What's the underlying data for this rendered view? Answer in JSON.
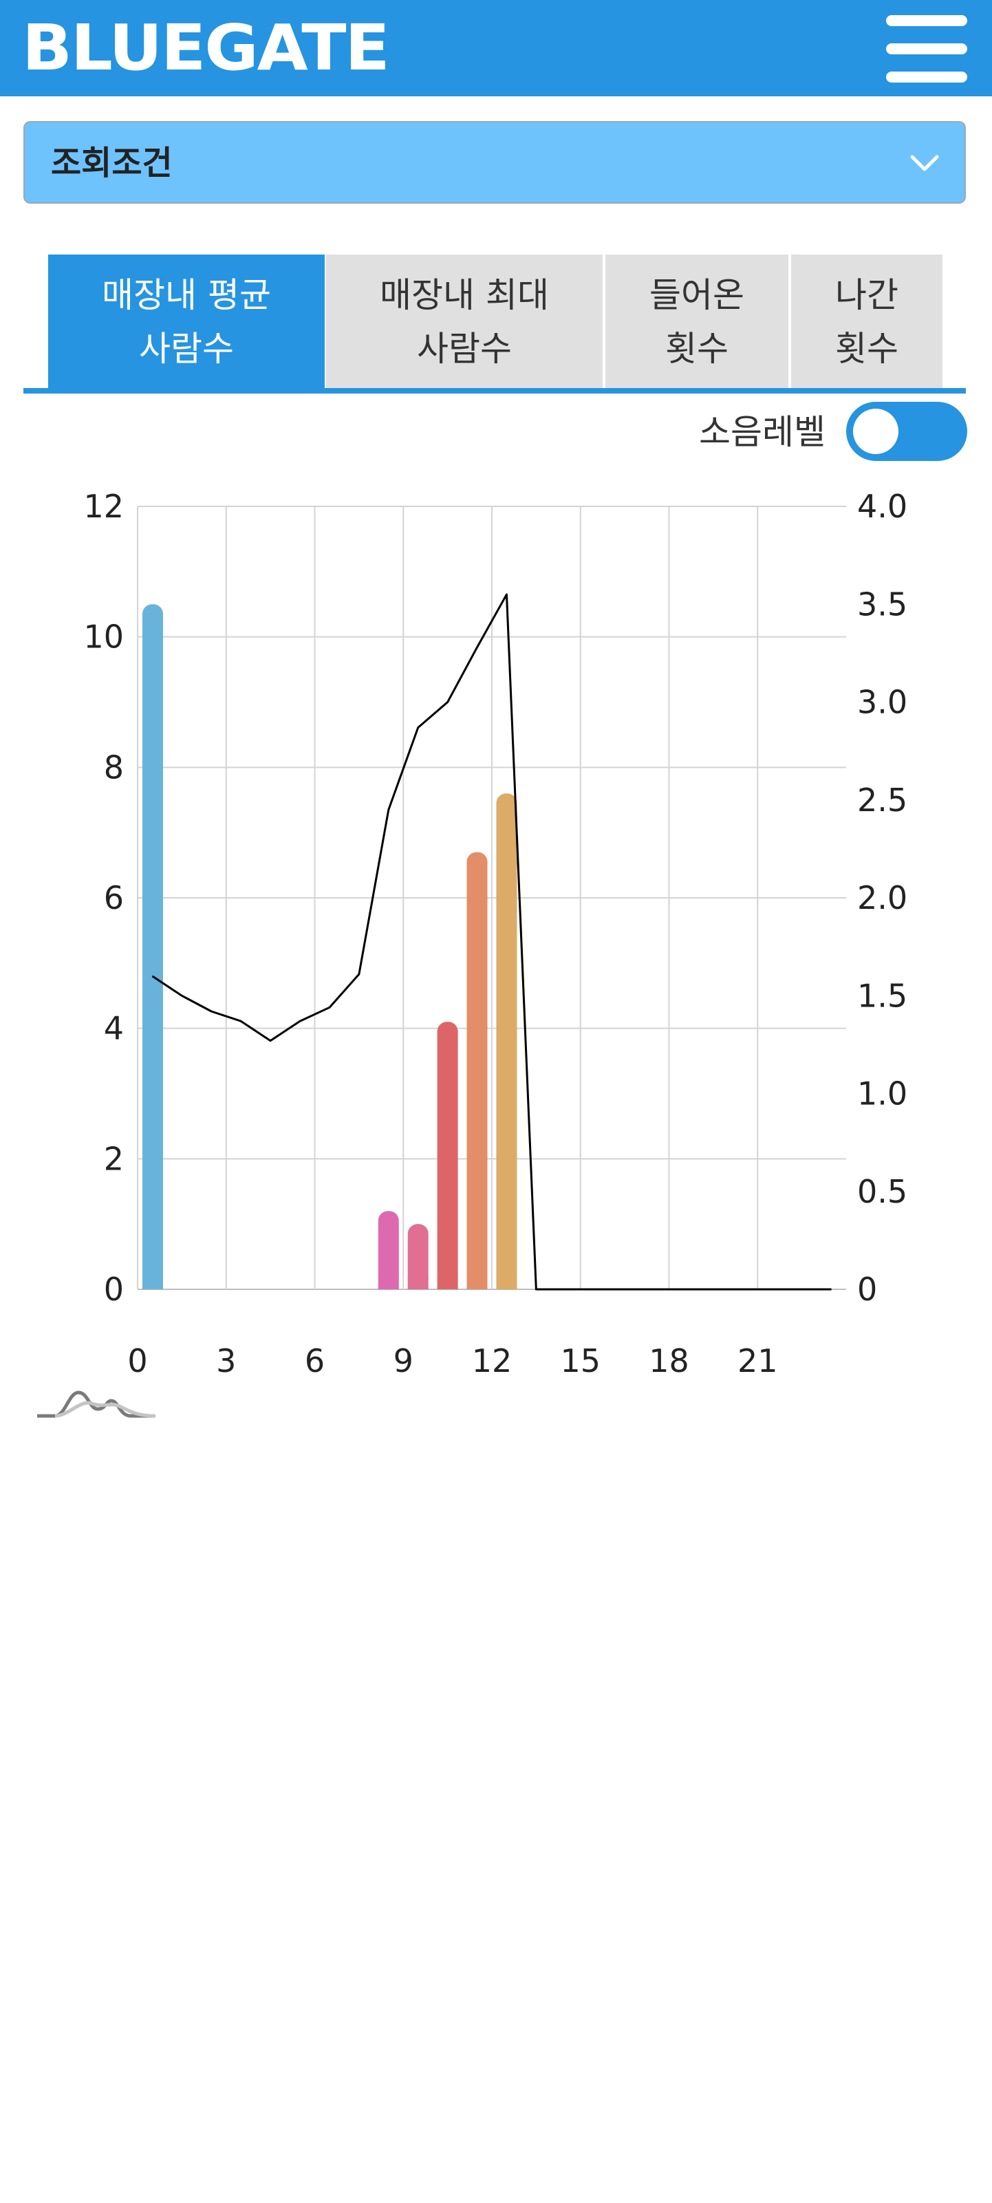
{
  "header": {
    "logo": "BLUEGATE",
    "menu_icon": "hamburger-menu-icon"
  },
  "filter": {
    "label": "조회조건",
    "icon": "chevron-down-icon"
  },
  "tabs": [
    {
      "line1": "매장내 평균",
      "line2": "사람수",
      "active": true
    },
    {
      "line1": "매장내 최대",
      "line2": "사람수",
      "active": false
    },
    {
      "line1": "들어온",
      "line2": "횟수",
      "active": false
    },
    {
      "line1": "나간",
      "line2": "횟수",
      "active": false
    }
  ],
  "noise": {
    "label": "소음레벨",
    "on": true
  },
  "chart_data": {
    "type": "bar",
    "grid": true,
    "x_ticks": [
      "0",
      "3",
      "6",
      "9",
      "12",
      "15",
      "18",
      "21"
    ],
    "y_left_ticks": [
      "0",
      "2",
      "4",
      "6",
      "8",
      "10",
      "12"
    ],
    "y_right_ticks": [
      "0",
      "0.5",
      "1.0",
      "1.5",
      "2.0",
      "2.5",
      "3.0",
      "3.5",
      "4.0"
    ],
    "ylim_left": [
      0,
      12
    ],
    "ylim_right": [
      0,
      4.0
    ],
    "bars": [
      {
        "x": 0,
        "value": 10.5,
        "color": "#68b3dc"
      },
      {
        "x": 8.5,
        "value": 1.2,
        "color": "#dd6aaf"
      },
      {
        "x": 9.5,
        "value": 1.0,
        "color": "#e06f93"
      },
      {
        "x": 10.5,
        "value": 4.1,
        "color": "#dd6568"
      },
      {
        "x": 11.5,
        "value": 6.7,
        "color": "#e38e68"
      },
      {
        "x": 12.5,
        "value": 7.6,
        "color": "#dcab66"
      }
    ],
    "line": {
      "axis": "right",
      "color": "#000000",
      "points": [
        [
          0.5,
          1.6
        ],
        [
          1.5,
          1.5
        ],
        [
          2.5,
          1.42
        ],
        [
          3.5,
          1.37
        ],
        [
          4.5,
          1.27
        ],
        [
          5.5,
          1.37
        ],
        [
          6.5,
          1.44
        ],
        [
          7.5,
          1.61
        ],
        [
          8.5,
          2.45
        ],
        [
          9.5,
          2.87
        ],
        [
          10.5,
          3.0
        ],
        [
          11.5,
          3.28
        ],
        [
          12.5,
          3.55
        ],
        [
          13.5,
          0.0
        ],
        [
          23.5,
          0.0
        ]
      ]
    },
    "icon": "distribution-curve-icon"
  }
}
